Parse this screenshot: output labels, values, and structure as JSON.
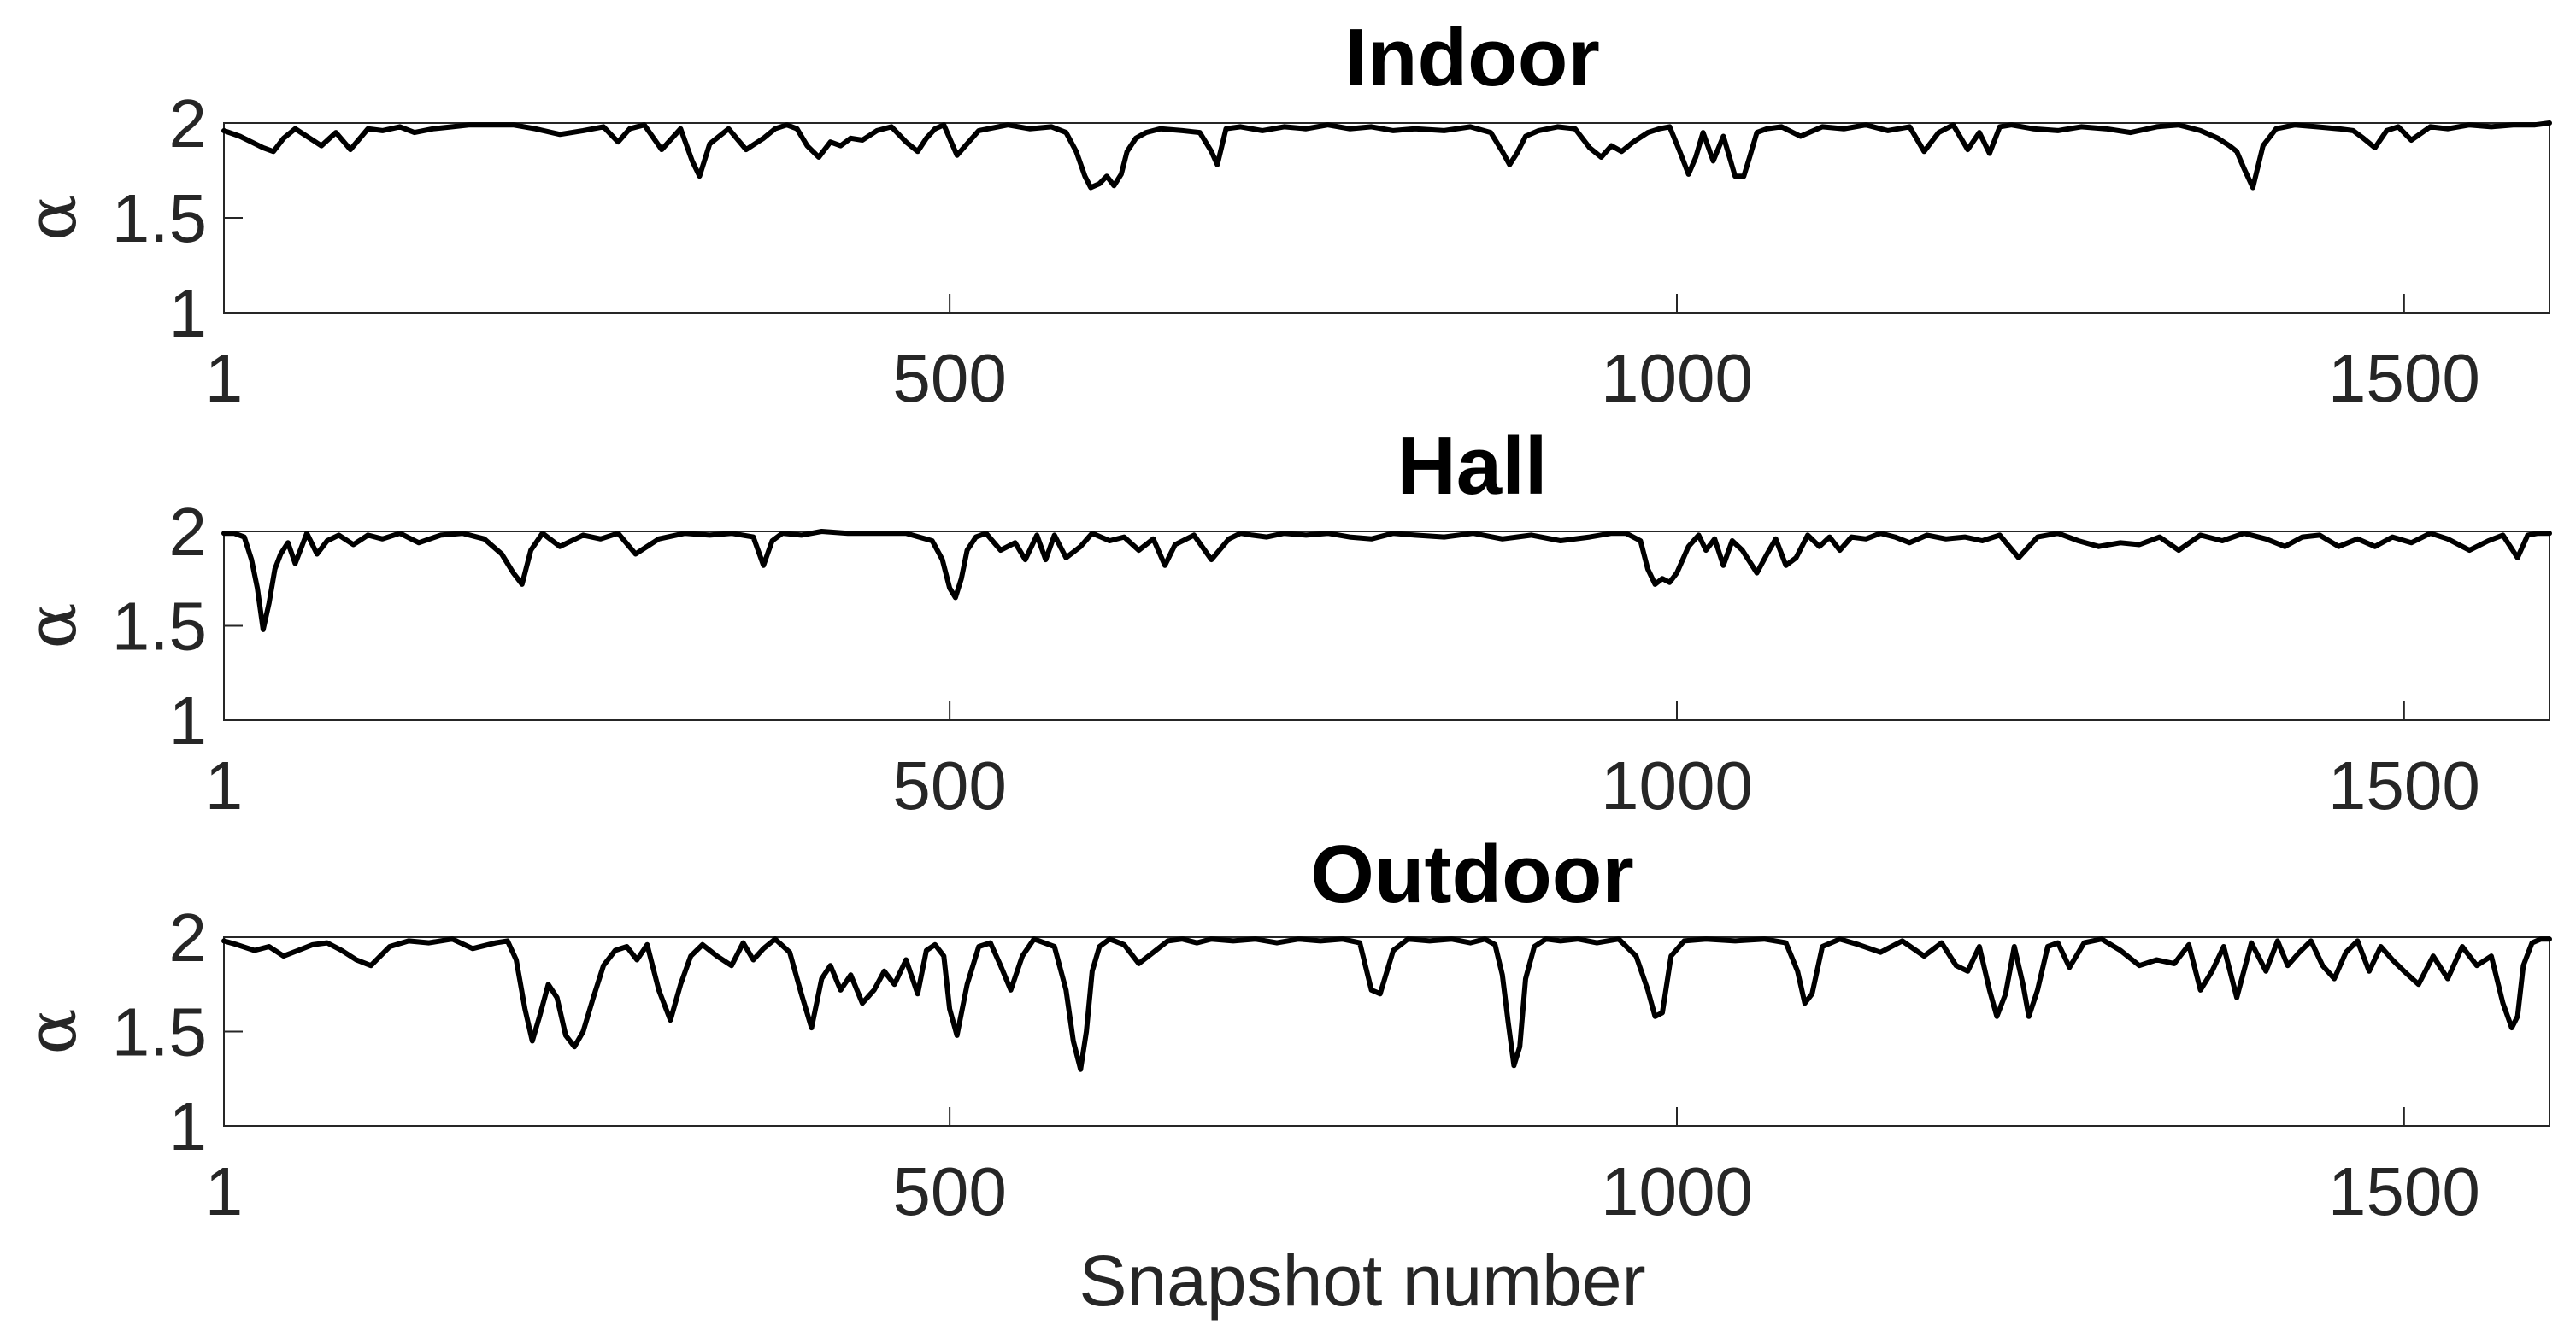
{
  "xlabel": "Snapshot number",
  "chart_data": [
    {
      "type": "line",
      "title": "Indoor",
      "ylabel": "α",
      "xlabel": "",
      "xlim": [
        1,
        1600
      ],
      "ylim": [
        1,
        2
      ],
      "xticks": [
        1,
        500,
        1000,
        1500
      ],
      "yticks": [
        1,
        1.5,
        2
      ],
      "xtick_labels": [
        "1",
        "500",
        "1000",
        "1500"
      ],
      "ytick_labels": [
        "1",
        "1.5",
        "2"
      ],
      "reference_line": 2,
      "grid": false,
      "series": [
        {
          "x": [
            1,
            12,
            20,
            28,
            35,
            42,
            50,
            58,
            68,
            78,
            88,
            100,
            110,
            122,
            132,
            145,
            158,
            170,
            185,
            200,
            215,
            232,
            248,
            262,
            272,
            280,
            290,
            302,
            315,
            323,
            328,
            335,
            348,
            360,
            372,
            380,
            388,
            395,
            402,
            410,
            418,
            425,
            432,
            440,
            450,
            460,
            470,
            478,
            484,
            490,
            496,
            505,
            520,
            540,
            555,
            570,
            580,
            587,
            593,
            597,
            603,
            608,
            613,
            618,
            622,
            628,
            635,
            645,
            660,
            672,
            680,
            684,
            690,
            700,
            715,
            730,
            745,
            760,
            775,
            790,
            805,
            820,
            840,
            858,
            872,
            880,
            885,
            890,
            896,
            905,
            918,
            930,
            940,
            948,
            955,
            962,
            970,
            980,
            988,
            995,
            1002,
            1008,
            1013,
            1018,
            1025,
            1032,
            1040,
            1046,
            1050,
            1055,
            1062,
            1072,
            1085,
            1100,
            1115,
            1130,
            1145,
            1160,
            1170,
            1180,
            1190,
            1200,
            1208,
            1215,
            1222,
            1230,
            1245,
            1262,
            1278,
            1295,
            1312,
            1330,
            1345,
            1360,
            1372,
            1380,
            1385,
            1390,
            1396,
            1403,
            1412,
            1425,
            1440,
            1455,
            1465,
            1472,
            1480,
            1488,
            1496,
            1505,
            1518,
            1530,
            1545,
            1560,
            1575,
            1590,
            1600
          ],
          "y": [
            1.96,
            1.93,
            1.9,
            1.87,
            1.85,
            1.92,
            1.97,
            1.93,
            1.88,
            1.95,
            1.86,
            1.97,
            1.96,
            1.98,
            1.95,
            1.97,
            1.98,
            1.99,
            1.99,
            1.99,
            1.97,
            1.94,
            1.96,
            1.98,
            1.9,
            1.97,
            1.99,
            1.86,
            1.97,
            1.8,
            1.72,
            1.89,
            1.97,
            1.86,
            1.92,
            1.97,
            1.99,
            1.97,
            1.88,
            1.82,
            1.9,
            1.88,
            1.92,
            1.91,
            1.96,
            1.98,
            1.9,
            1.85,
            1.92,
            1.97,
            1.99,
            1.83,
            1.96,
            1.99,
            1.97,
            1.98,
            1.95,
            1.85,
            1.72,
            1.66,
            1.68,
            1.72,
            1.67,
            1.73,
            1.85,
            1.92,
            1.95,
            1.97,
            1.96,
            1.95,
            1.85,
            1.78,
            1.97,
            1.98,
            1.96,
            1.98,
            1.97,
            1.99,
            1.97,
            1.98,
            1.96,
            1.97,
            1.96,
            1.98,
            1.95,
            1.85,
            1.78,
            1.84,
            1.93,
            1.96,
            1.98,
            1.97,
            1.87,
            1.82,
            1.88,
            1.85,
            1.9,
            1.95,
            1.97,
            1.98,
            1.85,
            1.73,
            1.82,
            1.95,
            1.8,
            1.93,
            1.72,
            1.72,
            1.82,
            1.95,
            1.97,
            1.98,
            1.93,
            1.98,
            1.97,
            1.99,
            1.96,
            1.98,
            1.85,
            1.95,
            1.99,
            1.86,
            1.95,
            1.84,
            1.98,
            1.99,
            1.97,
            1.96,
            1.98,
            1.97,
            1.95,
            1.98,
            1.99,
            1.96,
            1.92,
            1.88,
            1.85,
            1.76,
            1.66,
            1.88,
            1.97,
            1.99,
            1.98,
            1.97,
            1.96,
            1.92,
            1.87,
            1.96,
            1.98,
            1.91,
            1.98,
            1.97,
            1.99,
            1.98,
            1.99,
            1.99,
            2.0
          ]
        }
      ]
    },
    {
      "type": "line",
      "title": "Hall",
      "ylabel": "α",
      "xlabel": "",
      "xlim": [
        1,
        1600
      ],
      "ylim": [
        1,
        2
      ],
      "xticks": [
        1,
        500,
        1000,
        1500
      ],
      "yticks": [
        1,
        1.5,
        2
      ],
      "xtick_labels": [
        "1",
        "500",
        "1000",
        "1500"
      ],
      "ytick_labels": [
        "1",
        "1.5",
        "2"
      ],
      "reference_line": 2,
      "grid": false,
      "series": [
        {
          "x": [
            1,
            8,
            15,
            20,
            24,
            28,
            32,
            36,
            40,
            45,
            50,
            58,
            65,
            72,
            80,
            90,
            100,
            110,
            122,
            135,
            150,
            165,
            180,
            192,
            200,
            206,
            212,
            220,
            232,
            248,
            260,
            272,
            284,
            300,
            318,
            335,
            350,
            365,
            372,
            378,
            385,
            398,
            412,
            430,
            450,
            470,
            488,
            495,
            500,
            504,
            508,
            512,
            518,
            525,
            535,
            545,
            552,
            560,
            566,
            572,
            580,
            590,
            598,
            610,
            620,
            630,
            640,
            648,
            655,
            668,
            680,
            692,
            700,
            708,
            718,
            730,
            745,
            760,
            775,
            790,
            805,
            820,
            840,
            860,
            880,
            900,
            920,
            940,
            955,
            965,
            975,
            980,
            985,
            990,
            995,
            1000,
            1008,
            1015,
            1020,
            1026,
            1032,
            1038,
            1045,
            1055,
            1062,
            1068,
            1075,
            1082,
            1090,
            1098,
            1105,
            1112,
            1120,
            1130,
            1140,
            1150,
            1160,
            1172,
            1185,
            1198,
            1210,
            1222,
            1235,
            1248,
            1262,
            1276,
            1290,
            1305,
            1318,
            1332,
            1345,
            1360,
            1375,
            1390,
            1405,
            1418,
            1430,
            1442,
            1455,
            1468,
            1480,
            1492,
            1505,
            1518,
            1530,
            1545,
            1558,
            1568,
            1578,
            1585,
            1592,
            1600
          ],
          "y": [
            1.99,
            1.99,
            1.97,
            1.85,
            1.7,
            1.48,
            1.62,
            1.8,
            1.88,
            1.94,
            1.83,
            1.99,
            1.88,
            1.95,
            1.98,
            1.93,
            1.98,
            1.96,
            1.99,
            1.94,
            1.98,
            1.99,
            1.96,
            1.88,
            1.78,
            1.72,
            1.9,
            1.99,
            1.92,
            1.98,
            1.96,
            1.99,
            1.88,
            1.96,
            1.99,
            1.98,
            1.99,
            1.97,
            1.82,
            1.95,
            1.99,
            1.98,
            2.0,
            1.99,
            1.99,
            1.99,
            1.95,
            1.85,
            1.7,
            1.65,
            1.75,
            1.9,
            1.97,
            1.99,
            1.9,
            1.94,
            1.85,
            1.98,
            1.85,
            1.98,
            1.86,
            1.92,
            1.99,
            1.95,
            1.97,
            1.9,
            1.96,
            1.82,
            1.93,
            1.98,
            1.85,
            1.96,
            1.99,
            1.98,
            1.97,
            1.99,
            1.98,
            1.99,
            1.97,
            1.96,
            1.99,
            1.98,
            1.97,
            1.99,
            1.96,
            1.98,
            1.95,
            1.97,
            1.99,
            1.99,
            1.95,
            1.8,
            1.72,
            1.75,
            1.73,
            1.78,
            1.92,
            1.98,
            1.9,
            1.96,
            1.82,
            1.95,
            1.9,
            1.78,
            1.88,
            1.96,
            1.82,
            1.86,
            1.98,
            1.92,
            1.97,
            1.9,
            1.97,
            1.96,
            1.99,
            1.97,
            1.94,
            1.98,
            1.96,
            1.97,
            1.95,
            1.98,
            1.86,
            1.97,
            1.99,
            1.95,
            1.92,
            1.94,
            1.93,
            1.97,
            1.9,
            1.98,
            1.95,
            1.99,
            1.96,
            1.92,
            1.97,
            1.98,
            1.92,
            1.96,
            1.92,
            1.97,
            1.94,
            1.99,
            1.96,
            1.9,
            1.95,
            1.98,
            1.86,
            1.98,
            1.99,
            1.99
          ]
        }
      ]
    },
    {
      "type": "line",
      "title": "Outdoor",
      "ylabel": "α",
      "xlabel": "Snapshot number",
      "xlim": [
        1,
        1600
      ],
      "ylim": [
        1,
        2
      ],
      "xticks": [
        1,
        500,
        1000,
        1500
      ],
      "yticks": [
        1,
        1.5,
        2
      ],
      "xtick_labels": [
        "1",
        "500",
        "1000",
        "1500"
      ],
      "ytick_labels": [
        "1",
        "1.5",
        "2"
      ],
      "reference_line": 2,
      "grid": false,
      "series": [
        {
          "x": [
            1,
            10,
            22,
            32,
            42,
            52,
            62,
            72,
            82,
            92,
            102,
            115,
            128,
            142,
            158,
            172,
            188,
            196,
            202,
            208,
            213,
            218,
            224,
            230,
            236,
            242,
            248,
            255,
            262,
            270,
            278,
            285,
            292,
            300,
            308,
            315,
            322,
            330,
            340,
            350,
            358,
            365,
            372,
            380,
            390,
            398,
            405,
            412,
            418,
            425,
            432,
            440,
            448,
            455,
            462,
            470,
            478,
            484,
            490,
            496,
            500,
            505,
            512,
            520,
            528,
            535,
            542,
            550,
            558,
            565,
            572,
            580,
            585,
            590,
            594,
            598,
            603,
            610,
            620,
            630,
            640,
            650,
            660,
            670,
            680,
            695,
            710,
            725,
            740,
            755,
            770,
            782,
            790,
            796,
            805,
            815,
            830,
            845,
            858,
            868,
            875,
            880,
            884,
            888,
            892,
            896,
            902,
            910,
            920,
            932,
            945,
            960,
            972,
            980,
            985,
            990,
            996,
            1005,
            1020,
            1040,
            1060,
            1075,
            1083,
            1088,
            1093,
            1100,
            1112,
            1125,
            1140,
            1155,
            1170,
            1182,
            1192,
            1200,
            1208,
            1215,
            1220,
            1226,
            1232,
            1238,
            1242,
            1248,
            1255,
            1262,
            1270,
            1280,
            1292,
            1305,
            1318,
            1330,
            1342,
            1352,
            1360,
            1368,
            1376,
            1385,
            1395,
            1405,
            1413,
            1420,
            1428,
            1436,
            1444,
            1452,
            1460,
            1468,
            1476,
            1484,
            1492,
            1500,
            1510,
            1520,
            1530,
            1540,
            1550,
            1560,
            1568,
            1574,
            1578,
            1582,
            1588,
            1594,
            1600
          ],
          "y": [
            1.98,
            1.96,
            1.93,
            1.95,
            1.9,
            1.93,
            1.96,
            1.97,
            1.93,
            1.88,
            1.85,
            1.95,
            1.98,
            1.97,
            1.99,
            1.94,
            1.97,
            1.98,
            1.88,
            1.62,
            1.45,
            1.58,
            1.75,
            1.68,
            1.48,
            1.42,
            1.5,
            1.68,
            1.85,
            1.93,
            1.95,
            1.88,
            1.96,
            1.72,
            1.56,
            1.75,
            1.9,
            1.96,
            1.9,
            1.85,
            1.97,
            1.88,
            1.94,
            1.99,
            1.92,
            1.7,
            1.52,
            1.78,
            1.85,
            1.72,
            1.8,
            1.65,
            1.72,
            1.82,
            1.75,
            1.88,
            1.7,
            1.93,
            1.96,
            1.9,
            1.62,
            1.48,
            1.75,
            1.95,
            1.97,
            1.85,
            1.72,
            1.9,
            1.99,
            1.97,
            1.95,
            1.72,
            1.45,
            1.3,
            1.5,
            1.82,
            1.95,
            1.99,
            1.96,
            1.86,
            1.92,
            1.98,
            1.99,
            1.97,
            1.99,
            1.98,
            1.99,
            1.97,
            1.99,
            1.98,
            1.99,
            1.97,
            1.72,
            1.7,
            1.93,
            1.99,
            1.98,
            1.99,
            1.97,
            1.99,
            1.96,
            1.8,
            1.55,
            1.32,
            1.42,
            1.78,
            1.95,
            1.99,
            1.98,
            1.99,
            1.97,
            1.99,
            1.9,
            1.72,
            1.58,
            1.6,
            1.9,
            1.98,
            1.99,
            1.98,
            1.99,
            1.97,
            1.82,
            1.65,
            1.7,
            1.95,
            1.99,
            1.96,
            1.92,
            1.98,
            1.9,
            1.97,
            1.85,
            1.82,
            1.95,
            1.72,
            1.58,
            1.7,
            1.95,
            1.75,
            1.58,
            1.72,
            1.95,
            1.97,
            1.84,
            1.97,
            1.99,
            1.93,
            1.85,
            1.88,
            1.86,
            1.96,
            1.72,
            1.82,
            1.95,
            1.68,
            1.97,
            1.82,
            1.98,
            1.85,
            1.92,
            1.98,
            1.85,
            1.78,
            1.92,
            1.98,
            1.82,
            1.95,
            1.88,
            1.82,
            1.75,
            1.9,
            1.78,
            1.95,
            1.85,
            1.9,
            1.65,
            1.52,
            1.58,
            1.85,
            1.97,
            1.99,
            1.99
          ]
        }
      ]
    }
  ]
}
